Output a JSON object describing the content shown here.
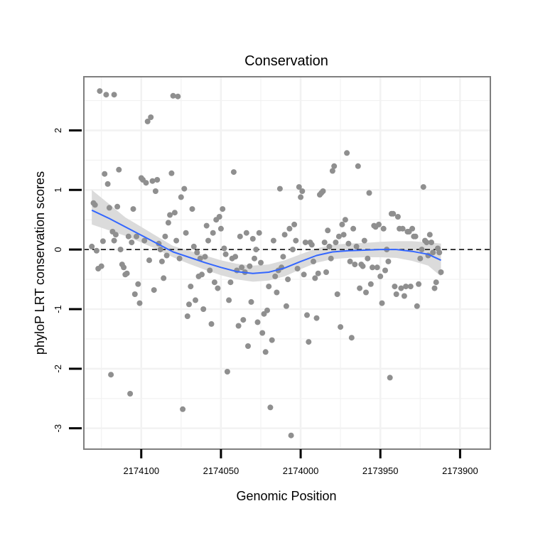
{
  "chart_data": {
    "type": "scatter",
    "title": "Conservation",
    "xlabel": "Genomic Position",
    "ylabel": "phyloP LRT conservation scores",
    "x_reversed": true,
    "xlim": [
      2174136,
      2173881
    ],
    "ylim": [
      -3.35,
      2.9
    ],
    "x_ticks": [
      2174100,
      2174050,
      2174000,
      2173950,
      2173900
    ],
    "x_tick_labels": [
      "2174100",
      "2174050",
      "2174000",
      "2173950",
      "2173900"
    ],
    "y_ticks": [
      -3,
      -2,
      -1,
      0,
      1,
      2
    ],
    "y_tick_labels": [
      "-3",
      "-2",
      "-1",
      "0",
      "1",
      "2"
    ],
    "reference_line": {
      "y": 0,
      "style": "dashed"
    },
    "colors": {
      "points": "#8f8f8f",
      "smooth": "#3366ff",
      "ribbon": "#d9d9d9",
      "grid": "#f2f2f2",
      "frame": "#7f7f7f"
    },
    "series": [
      {
        "name": "phyloP scores",
        "points": [
          [
            2174131,
            0.05
          ],
          [
            2174130,
            0.78
          ],
          [
            2174129,
            0.75
          ],
          [
            2174128,
            -0.02
          ],
          [
            2174127,
            -0.32
          ],
          [
            2174126,
            2.66
          ],
          [
            2174125,
            -0.28
          ],
          [
            2174124,
            0.14
          ],
          [
            2174123,
            1.27
          ],
          [
            2174122,
            2.6
          ],
          [
            2174121,
            1.1
          ],
          [
            2174120,
            0.7
          ],
          [
            2174119,
            -2.1
          ],
          [
            2174118,
            0.3
          ],
          [
            2174117,
            0.15
          ],
          [
            2174117,
            2.6
          ],
          [
            2174116,
            0.25
          ],
          [
            2174115,
            0.72
          ],
          [
            2174114,
            1.34
          ],
          [
            2174113,
            0.0
          ],
          [
            2174112,
            -0.25
          ],
          [
            2174111,
            -0.3
          ],
          [
            2174110,
            -0.42
          ],
          [
            2174109,
            -0.4
          ],
          [
            2174108,
            0.22
          ],
          [
            2174107,
            -2.42
          ],
          [
            2174106,
            0.12
          ],
          [
            2174105,
            0.68
          ],
          [
            2174104,
            -0.75
          ],
          [
            2174103,
            0.22
          ],
          [
            2174102,
            -0.58
          ],
          [
            2174101,
            -0.9
          ],
          [
            2174100,
            1.2
          ],
          [
            2174099,
            1.17
          ],
          [
            2174098,
            0.15
          ],
          [
            2174097,
            1.12
          ],
          [
            2174096,
            2.15
          ],
          [
            2174095,
            -0.18
          ],
          [
            2174094,
            2.22
          ],
          [
            2174093,
            1.15
          ],
          [
            2174092,
            -0.68
          ],
          [
            2174091,
            0.98
          ],
          [
            2174090,
            1.17
          ],
          [
            2174089,
            0.1
          ],
          [
            2174088,
            0.0
          ],
          [
            2174087,
            -0.2
          ],
          [
            2174086,
            -0.48
          ],
          [
            2174085,
            0.22
          ],
          [
            2174084,
            -0.1
          ],
          [
            2174083,
            0.45
          ],
          [
            2174082,
            0.58
          ],
          [
            2174081,
            1.28
          ],
          [
            2174080,
            2.58
          ],
          [
            2174079,
            0.62
          ],
          [
            2174078,
            0.15
          ],
          [
            2174077,
            2.57
          ],
          [
            2174076,
            -0.15
          ],
          [
            2174075,
            0.88
          ],
          [
            2174074,
            -2.68
          ],
          [
            2174073,
            1.02
          ],
          [
            2174072,
            0.28
          ],
          [
            2174071,
            -1.12
          ],
          [
            2174070,
            -0.92
          ],
          [
            2174069,
            -0.62
          ],
          [
            2174068,
            0.68
          ],
          [
            2174067,
            0.05
          ],
          [
            2174066,
            -0.85
          ],
          [
            2174065,
            -0.05
          ],
          [
            2174064,
            -0.45
          ],
          [
            2174063,
            -0.15
          ],
          [
            2174062,
            -0.42
          ],
          [
            2174061,
            -1.0
          ],
          [
            2174060,
            -0.12
          ],
          [
            2174059,
            0.4
          ],
          [
            2174058,
            0.15
          ],
          [
            2174057,
            -0.35
          ],
          [
            2174056,
            -1.25
          ],
          [
            2174055,
            0.28
          ],
          [
            2174054,
            -0.55
          ],
          [
            2174053,
            0.5
          ],
          [
            2174052,
            -0.65
          ],
          [
            2174051,
            0.55
          ],
          [
            2174050,
            0.35
          ],
          [
            2174049,
            0.68
          ],
          [
            2174048,
            0.02
          ],
          [
            2174047,
            -0.08
          ],
          [
            2174046,
            -2.05
          ],
          [
            2174045,
            -0.85
          ],
          [
            2174044,
            -0.55
          ],
          [
            2174043,
            -0.15
          ],
          [
            2174042,
            1.3
          ],
          [
            2174041,
            -0.12
          ],
          [
            2174040,
            -0.35
          ],
          [
            2174039,
            -1.28
          ],
          [
            2174038,
            0.22
          ],
          [
            2174037,
            -0.3
          ],
          [
            2174036,
            -1.18
          ],
          [
            2174035,
            -0.38
          ],
          [
            2174034,
            0.28
          ],
          [
            2174033,
            -1.62
          ],
          [
            2174032,
            -0.28
          ],
          [
            2174031,
            -0.88
          ],
          [
            2174030,
            0.18
          ],
          [
            2174029,
            -0.15
          ],
          [
            2174028,
            0.0
          ],
          [
            2174027,
            -1.22
          ],
          [
            2174026,
            0.28
          ],
          [
            2174025,
            -0.22
          ],
          [
            2174024,
            -1.4
          ],
          [
            2174023,
            -1.08
          ],
          [
            2174022,
            -1.72
          ],
          [
            2174021,
            -1.02
          ],
          [
            2174020,
            -0.62
          ],
          [
            2174019,
            -2.65
          ],
          [
            2174018,
            -1.52
          ],
          [
            2174017,
            0.15
          ],
          [
            2174016,
            -0.45
          ],
          [
            2174015,
            -0.72
          ],
          [
            2174014,
            -0.35
          ],
          [
            2174013,
            1.02
          ],
          [
            2174012,
            -0.3
          ],
          [
            2174011,
            -0.12
          ],
          [
            2174010,
            0.25
          ],
          [
            2174009,
            -0.95
          ],
          [
            2174008,
            -0.5
          ],
          [
            2174007,
            0.35
          ],
          [
            2174006,
            -3.12
          ],
          [
            2174005,
            0.0
          ],
          [
            2174004,
            0.42
          ],
          [
            2174003,
            0.15
          ],
          [
            2174002,
            -0.32
          ],
          [
            2174001,
            1.05
          ],
          [
            2174000,
            0.88
          ],
          [
            2173999,
            0.98
          ],
          [
            2173998,
            -0.42
          ],
          [
            2173997,
            0.12
          ],
          [
            2173996,
            -1.1
          ],
          [
            2173995,
            -1.55
          ],
          [
            2173994,
            0.12
          ],
          [
            2173993,
            0.08
          ],
          [
            2173992,
            -0.2
          ],
          [
            2173991,
            -0.48
          ],
          [
            2173990,
            -1.15
          ],
          [
            2173989,
            -0.4
          ],
          [
            2173988,
            0.92
          ],
          [
            2173987,
            0.95
          ],
          [
            2173986,
            0.98
          ],
          [
            2173985,
            0.12
          ],
          [
            2173984,
            -0.38
          ],
          [
            2173983,
            0.32
          ],
          [
            2173982,
            0.05
          ],
          [
            2173981,
            -0.15
          ],
          [
            2173980,
            1.32
          ],
          [
            2173979,
            1.4
          ],
          [
            2173978,
            0.12
          ],
          [
            2173977,
            -0.75
          ],
          [
            2173976,
            0.22
          ],
          [
            2173975,
            -1.3
          ],
          [
            2173974,
            0.42
          ],
          [
            2173973,
            0.25
          ],
          [
            2173972,
            0.5
          ],
          [
            2173971,
            1.62
          ],
          [
            2173970,
            0.1
          ],
          [
            2173969,
            -0.2
          ],
          [
            2173968,
            -1.48
          ],
          [
            2173967,
            0.35
          ],
          [
            2173966,
            -0.25
          ],
          [
            2173965,
            0.05
          ],
          [
            2173964,
            1.4
          ],
          [
            2173963,
            -0.65
          ],
          [
            2173962,
            -0.25
          ],
          [
            2173961,
            -0.28
          ],
          [
            2173960,
            0.15
          ],
          [
            2173959,
            -0.72
          ],
          [
            2173958,
            -0.15
          ],
          [
            2173957,
            0.95
          ],
          [
            2173956,
            -0.58
          ],
          [
            2173955,
            -0.3
          ],
          [
            2173954,
            0.4
          ],
          [
            2173953,
            0.38
          ],
          [
            2173952,
            -0.3
          ],
          [
            2173951,
            0.42
          ],
          [
            2173950,
            -0.45
          ],
          [
            2173949,
            -0.9
          ],
          [
            2173948,
            0.35
          ],
          [
            2173947,
            -0.35
          ],
          [
            2173946,
            0.0
          ],
          [
            2173945,
            -0.2
          ],
          [
            2173944,
            -2.15
          ],
          [
            2173943,
            0.6
          ],
          [
            2173942,
            0.6
          ],
          [
            2173941,
            -0.62
          ],
          [
            2173940,
            -0.75
          ],
          [
            2173939,
            0.55
          ],
          [
            2173938,
            0.35
          ],
          [
            2173937,
            -0.65
          ],
          [
            2173936,
            0.35
          ],
          [
            2173935,
            -0.78
          ],
          [
            2173934,
            -0.62
          ],
          [
            2173933,
            0.3
          ],
          [
            2173932,
            0.3
          ],
          [
            2173931,
            -0.62
          ],
          [
            2173930,
            0.35
          ],
          [
            2173929,
            0.22
          ],
          [
            2173928,
            0.22
          ],
          [
            2173927,
            -0.95
          ],
          [
            2173926,
            -0.58
          ],
          [
            2173925,
            -0.15
          ],
          [
            2173924,
            0.0
          ],
          [
            2173923,
            1.05
          ],
          [
            2173922,
            0.15
          ],
          [
            2173921,
            0.12
          ],
          [
            2173920,
            -0.1
          ],
          [
            2173919,
            0.25
          ],
          [
            2173918,
            0.12
          ],
          [
            2173917,
            -0.05
          ],
          [
            2173916,
            -0.65
          ],
          [
            2173915,
            -0.55
          ],
          [
            2173914,
            0.02
          ],
          [
            2173913,
            -0.05
          ],
          [
            2173912,
            -0.38
          ]
        ]
      },
      {
        "name": "loess fit",
        "fit": [
          [
            2174131,
            0.66
          ],
          [
            2174120,
            0.52
          ],
          [
            2174110,
            0.38
          ],
          [
            2174100,
            0.24
          ],
          [
            2174090,
            0.1
          ],
          [
            2174080,
            -0.04
          ],
          [
            2174070,
            -0.13
          ],
          [
            2174060,
            -0.22
          ],
          [
            2174050,
            -0.3
          ],
          [
            2174040,
            -0.37
          ],
          [
            2174030,
            -0.4
          ],
          [
            2174020,
            -0.38
          ],
          [
            2174010,
            -0.31
          ],
          [
            2174000,
            -0.2
          ],
          [
            2173990,
            -0.1
          ],
          [
            2173980,
            -0.04
          ],
          [
            2173970,
            -0.02
          ],
          [
            2173960,
            -0.01
          ],
          [
            2173950,
            0.0
          ],
          [
            2173940,
            0.0
          ],
          [
            2173930,
            -0.03
          ],
          [
            2173920,
            -0.08
          ],
          [
            2173912,
            -0.18
          ]
        ],
        "lower": [
          [
            2174131,
            0.42
          ],
          [
            2174120,
            0.32
          ],
          [
            2174110,
            0.23
          ],
          [
            2174100,
            0.12
          ],
          [
            2174090,
            0.0
          ],
          [
            2174080,
            -0.13
          ],
          [
            2174070,
            -0.24
          ],
          [
            2174060,
            -0.34
          ],
          [
            2174050,
            -0.43
          ],
          [
            2174040,
            -0.5
          ],
          [
            2174030,
            -0.54
          ],
          [
            2174020,
            -0.52
          ],
          [
            2174010,
            -0.45
          ],
          [
            2174000,
            -0.33
          ],
          [
            2173990,
            -0.22
          ],
          [
            2173980,
            -0.16
          ],
          [
            2173970,
            -0.14
          ],
          [
            2173960,
            -0.13
          ],
          [
            2173950,
            -0.13
          ],
          [
            2173940,
            -0.14
          ],
          [
            2173930,
            -0.19
          ],
          [
            2173920,
            -0.27
          ],
          [
            2173912,
            -0.45
          ]
        ],
        "upper": [
          [
            2174131,
            1.0
          ],
          [
            2174120,
            0.76
          ],
          [
            2174110,
            0.54
          ],
          [
            2174100,
            0.38
          ],
          [
            2174090,
            0.22
          ],
          [
            2174080,
            0.06
          ],
          [
            2174070,
            -0.02
          ],
          [
            2174060,
            -0.1
          ],
          [
            2174050,
            -0.18
          ],
          [
            2174040,
            -0.24
          ],
          [
            2174030,
            -0.27
          ],
          [
            2174020,
            -0.25
          ],
          [
            2174010,
            -0.18
          ],
          [
            2174000,
            -0.08
          ],
          [
            2173990,
            0.02
          ],
          [
            2173980,
            0.08
          ],
          [
            2173970,
            0.1
          ],
          [
            2173960,
            0.11
          ],
          [
            2173950,
            0.13
          ],
          [
            2173940,
            0.14
          ],
          [
            2173930,
            0.14
          ],
          [
            2173920,
            0.12
          ],
          [
            2173912,
            0.1
          ]
        ]
      }
    ]
  }
}
